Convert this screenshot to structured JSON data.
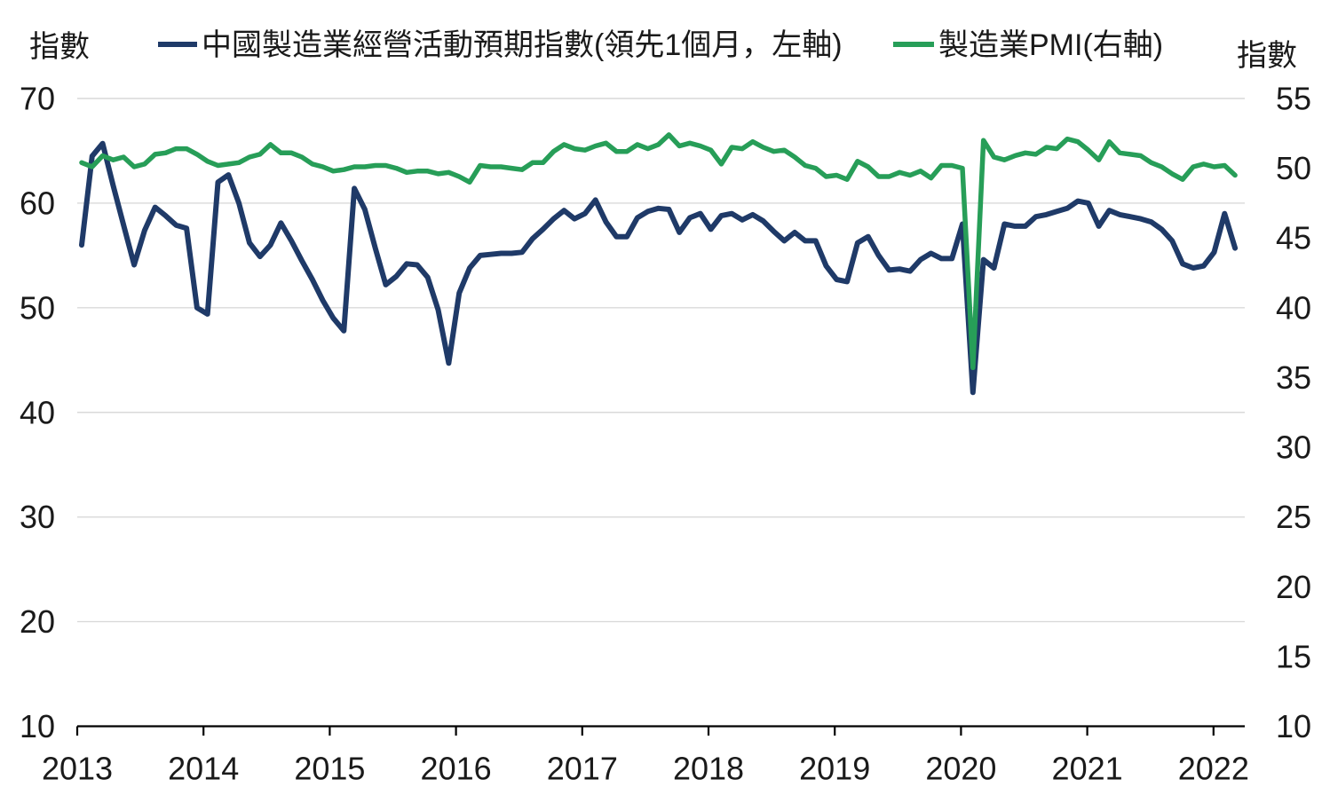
{
  "page": {
    "background": "#ffffff"
  },
  "axis_titles": {
    "left": "指數",
    "right": "指數"
  },
  "legend": [
    {
      "label": "中國製造業經營活動預期指數(領先1個月，左軸)",
      "color": "#1f3a68"
    },
    {
      "label": "製造業PMI(右軸)",
      "color": "#279e58"
    }
  ],
  "colors": {
    "expectations_line": "#1f3a68",
    "pmi_line": "#279e58",
    "gridline": "#d9d9d9",
    "axis_line": "#000000",
    "text": "#1a1a1a"
  },
  "chart_data": {
    "type": "line",
    "title": "",
    "x_frequency": "monthly",
    "x_start": "2013-01",
    "x_end": "2022-03",
    "x_tick_labels": [
      "2013",
      "2014",
      "2015",
      "2016",
      "2017",
      "2018",
      "2019",
      "2020",
      "2021",
      "2022"
    ],
    "grid": "horizontal",
    "legend_position": "top",
    "left_axis": {
      "title": "指數",
      "min": 10,
      "max": 70,
      "ticks": [
        70,
        60,
        50,
        40,
        30,
        20,
        10
      ]
    },
    "right_axis": {
      "title": "指數",
      "min": 10,
      "max": 55,
      "ticks": [
        55,
        50,
        45,
        40,
        35,
        30,
        25,
        20,
        15,
        10
      ]
    },
    "series": [
      {
        "name": "中國製造業經營活動預期指數(領先1個月，左軸)",
        "axis": "left",
        "color": "#1f3a68",
        "values": [
          56.0,
          64.5,
          65.7,
          61.7,
          57.9,
          54.1,
          57.4,
          59.6,
          58.8,
          57.9,
          57.6,
          50.0,
          49.4,
          62.0,
          62.7,
          60.0,
          56.2,
          54.9,
          56.0,
          58.1,
          56.4,
          54.5,
          52.7,
          50.7,
          49.0,
          47.8,
          61.4,
          59.4,
          55.7,
          52.2,
          53.0,
          54.2,
          54.1,
          52.9,
          49.8,
          44.7,
          51.4,
          53.8,
          55.0,
          55.1,
          55.2,
          55.2,
          55.3,
          56.6,
          57.5,
          58.5,
          59.3,
          58.5,
          59.0,
          60.3,
          58.2,
          56.8,
          56.8,
          58.6,
          59.2,
          59.5,
          59.4,
          57.2,
          58.6,
          59.0,
          57.5,
          58.8,
          59.0,
          58.4,
          58.9,
          58.3,
          57.3,
          56.4,
          57.2,
          56.4,
          56.4,
          54.0,
          52.7,
          52.5,
          56.2,
          56.8,
          55.0,
          53.6,
          53.7,
          53.5,
          54.6,
          55.2,
          54.7,
          54.7,
          58.0,
          41.9,
          54.6,
          53.8,
          58.0,
          57.8,
          57.8,
          58.7,
          58.9,
          59.2,
          59.5,
          60.2,
          60.0,
          57.8,
          59.3,
          58.9,
          58.7,
          58.5,
          58.2,
          57.5,
          56.4,
          54.2,
          53.8,
          54.0,
          55.3,
          59.0,
          55.7
        ]
      },
      {
        "name": "製造業PMI(右軸)",
        "axis": "right",
        "color": "#279e58",
        "values": [
          50.4,
          50.1,
          50.9,
          50.6,
          50.8,
          50.1,
          50.3,
          51.0,
          51.1,
          51.4,
          51.4,
          51.0,
          50.5,
          50.2,
          50.3,
          50.4,
          50.8,
          51.0,
          51.7,
          51.1,
          51.1,
          50.8,
          50.3,
          50.1,
          49.8,
          49.9,
          50.1,
          50.1,
          50.2,
          50.2,
          50.0,
          49.7,
          49.8,
          49.8,
          49.6,
          49.7,
          49.4,
          49.0,
          50.2,
          50.1,
          50.1,
          50.0,
          49.9,
          50.4,
          50.4,
          51.2,
          51.7,
          51.4,
          51.3,
          51.6,
          51.8,
          51.2,
          51.2,
          51.7,
          51.4,
          51.7,
          52.4,
          51.6,
          51.8,
          51.6,
          51.3,
          50.3,
          51.5,
          51.4,
          51.9,
          51.5,
          51.2,
          51.3,
          50.8,
          50.2,
          50.0,
          49.4,
          49.5,
          49.2,
          50.5,
          50.1,
          49.4,
          49.4,
          49.7,
          49.5,
          49.8,
          49.3,
          50.2,
          50.2,
          50.0,
          35.7,
          52.0,
          50.8,
          50.6,
          50.9,
          51.1,
          51.0,
          51.5,
          51.4,
          52.1,
          51.9,
          51.3,
          50.6,
          51.9,
          51.1,
          51.0,
          50.9,
          50.4,
          50.1,
          49.6,
          49.2,
          50.1,
          50.3,
          50.1,
          50.2,
          49.5
        ]
      }
    ]
  }
}
